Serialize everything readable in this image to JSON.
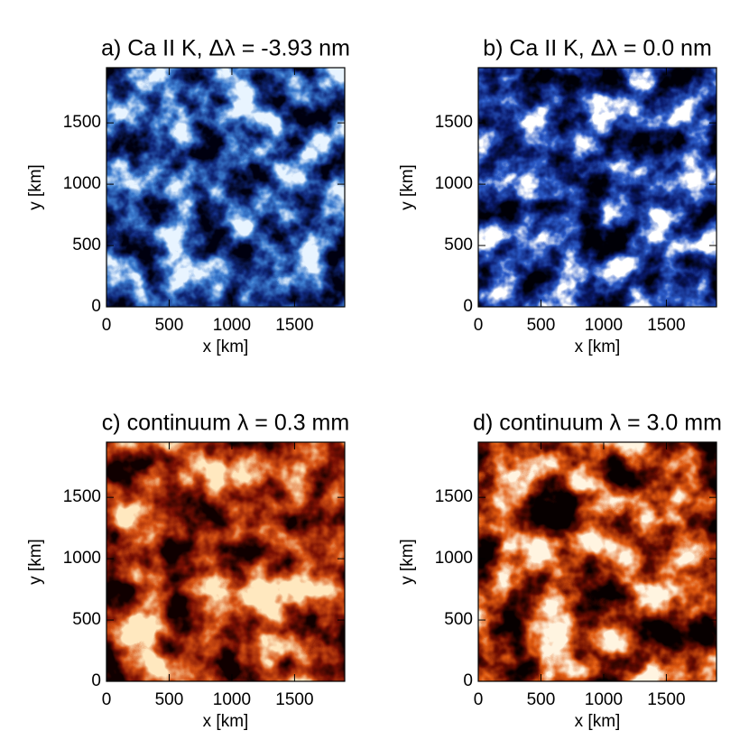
{
  "chart_data": [
    {
      "type": "image",
      "title": "a) Ca II K, Δλ = -3.93 nm",
      "xlabel": "x [km]",
      "ylabel": "y [km]",
      "xlim": [
        0,
        1900
      ],
      "ylim": [
        0,
        1950
      ],
      "xticks": [
        0,
        500,
        1000,
        1500
      ],
      "yticks": [
        0,
        500,
        1000,
        1500
      ],
      "colormap": [
        "#000010",
        "#10287a",
        "#3c7cd0",
        "#e8f4ff"
      ]
    },
    {
      "type": "image",
      "title": "b) Ca II K, Δλ = 0.0 nm",
      "xlabel": "x [km]",
      "ylabel": "y [km]",
      "xlim": [
        0,
        1900
      ],
      "ylim": [
        0,
        1950
      ],
      "xticks": [
        0,
        500,
        1000,
        1500
      ],
      "yticks": [
        0,
        500,
        1000,
        1500
      ],
      "colormap": [
        "#000008",
        "#0a1a6a",
        "#2c5cc8",
        "#ffffff"
      ]
    },
    {
      "type": "image",
      "title": "c) continuum λ = 0.3 mm",
      "xlabel": "x [km]",
      "ylabel": "y [km]",
      "xlim": [
        0,
        1900
      ],
      "ylim": [
        0,
        1950
      ],
      "xticks": [
        0,
        500,
        1000,
        1500
      ],
      "yticks": [
        0,
        500,
        1000,
        1500
      ],
      "colormap": [
        "#100000",
        "#7a1004",
        "#d85414",
        "#ffe8c0"
      ]
    },
    {
      "type": "image",
      "title": "d) continuum λ = 3.0 mm",
      "xlabel": "x [km]",
      "ylabel": "y [km]",
      "xlim": [
        0,
        1900
      ],
      "ylim": [
        0,
        1950
      ],
      "xticks": [
        0,
        500,
        1000,
        1500
      ],
      "yticks": [
        0,
        500,
        1000,
        1500
      ],
      "colormap": [
        "#080000",
        "#6a0c02",
        "#e05a10",
        "#fff4e0"
      ]
    }
  ]
}
